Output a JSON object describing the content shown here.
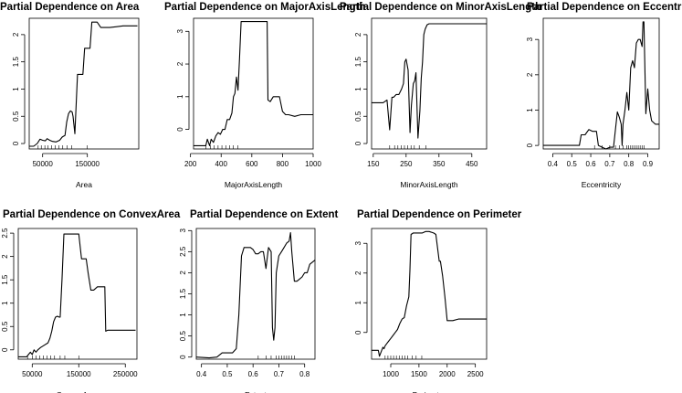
{
  "chart_data": [
    {
      "type": "line",
      "title": "Partial Dependence on Area",
      "xlabel": "Area",
      "ylabel": "",
      "xlim": [
        20000,
        265000
      ],
      "ylim": [
        -0.1,
        2.3
      ],
      "xticks": [
        50000,
        150000
      ],
      "yticks": [
        0.0,
        0.5,
        1.0,
        1.5,
        2.0
      ],
      "rug": [
        40000,
        47000,
        55000,
        62000,
        70000,
        78000,
        86000,
        95000,
        105000,
        115000,
        150000
      ],
      "series": [
        {
          "name": "partial dependence",
          "x": [
            20000,
            30000,
            38000,
            44000,
            50000,
            56000,
            60000,
            66000,
            72000,
            80000,
            88000,
            94000,
            100000,
            104000,
            108000,
            112000,
            116000,
            118000,
            122000,
            128000,
            132000,
            140000,
            144000,
            148000,
            152000,
            156000,
            160000,
            168000,
            172000,
            180000,
            200000,
            230000,
            262000
          ],
          "y": [
            -0.05,
            -0.05,
            0.0,
            0.08,
            0.06,
            0.05,
            0.09,
            0.06,
            0.04,
            0.03,
            0.06,
            0.12,
            0.15,
            0.4,
            0.55,
            0.6,
            0.58,
            0.5,
            0.18,
            1.27,
            1.27,
            1.27,
            1.75,
            1.75,
            1.75,
            1.75,
            2.23,
            2.23,
            2.23,
            2.13,
            2.13,
            2.16,
            2.16
          ]
        }
      ]
    },
    {
      "type": "line",
      "title": "Partial Dependence on MajorAxisLength",
      "xlabel": "MajorAxisLength",
      "ylabel": "",
      "xlim": [
        220,
        1000
      ],
      "ylim": [
        -0.6,
        3.4
      ],
      "xticks": [
        200,
        400,
        600,
        800,
        1000
      ],
      "yticks": [
        0,
        1,
        2,
        3
      ],
      "rug": [
        300,
        330,
        355,
        380,
        405,
        430,
        455,
        480,
        510
      ],
      "series": [
        {
          "name": "partial dependence",
          "x": [
            220,
            260,
            300,
            310,
            325,
            335,
            350,
            365,
            380,
            395,
            410,
            425,
            440,
            455,
            470,
            480,
            490,
            500,
            510,
            520,
            530,
            540,
            560,
            580,
            600,
            620,
            640,
            660,
            680,
            700,
            705,
            720,
            740,
            760,
            780,
            800,
            820,
            840,
            880,
            920,
            960,
            1000
          ],
          "y": [
            -0.5,
            -0.5,
            -0.5,
            -0.3,
            -0.5,
            -0.3,
            -0.4,
            -0.2,
            -0.1,
            -0.15,
            0.0,
            0.0,
            0.3,
            0.3,
            0.5,
            1.0,
            1.1,
            1.6,
            1.2,
            2.2,
            3.3,
            3.3,
            3.3,
            3.3,
            3.3,
            3.3,
            3.3,
            3.3,
            3.3,
            3.3,
            0.9,
            0.85,
            1.0,
            1.0,
            1.0,
            0.55,
            0.45,
            0.45,
            0.4,
            0.45,
            0.45,
            0.45
          ]
        }
      ]
    },
    {
      "type": "line",
      "title": "Partial Dependence on MinorAxisLength",
      "xlabel": "MinorAxisLength",
      "ylabel": "",
      "xlim": [
        145,
        495
      ],
      "ylim": [
        -0.1,
        2.3
      ],
      "xticks": [
        150,
        250,
        350,
        450
      ],
      "yticks": [
        0.0,
        0.5,
        1.0,
        1.5,
        2.0
      ],
      "rug": [
        200,
        215,
        225,
        235,
        245,
        255,
        265,
        275,
        290,
        310
      ],
      "series": [
        {
          "name": "partial dependence",
          "x": [
            145,
            165,
            180,
            192,
            200,
            207,
            212,
            220,
            228,
            236,
            242,
            246,
            250,
            256,
            262,
            266,
            272,
            276,
            280,
            286,
            292,
            296,
            300,
            304,
            308,
            314,
            320,
            330,
            345,
            360,
            400,
            440,
            495
          ],
          "y": [
            0.75,
            0.75,
            0.75,
            0.8,
            0.25,
            0.85,
            0.85,
            0.9,
            0.9,
            1.0,
            1.1,
            1.5,
            1.55,
            1.35,
            0.2,
            0.7,
            1.1,
            1.15,
            1.3,
            0.1,
            0.6,
            1.2,
            1.5,
            2.0,
            2.1,
            2.18,
            2.2,
            2.2,
            2.2,
            2.2,
            2.2,
            2.2,
            2.2
          ]
        }
      ]
    },
    {
      "type": "line",
      "title": "Partial Dependence on Eccentricity",
      "xlabel": "Eccentricity",
      "ylabel": "",
      "xlim": [
        0.35,
        0.96
      ],
      "ylim": [
        -0.1,
        3.6
      ],
      "xticks": [
        0.4,
        0.5,
        0.6,
        0.7,
        0.8,
        0.9
      ],
      "yticks": [
        0,
        1,
        2,
        3
      ],
      "rug": [
        0.62,
        0.66,
        0.7,
        0.73,
        0.75,
        0.77,
        0.79,
        0.8,
        0.81,
        0.82,
        0.83,
        0.84,
        0.85,
        0.86,
        0.87,
        0.88
      ],
      "series": [
        {
          "name": "partial dependence",
          "x": [
            0.35,
            0.45,
            0.54,
            0.55,
            0.57,
            0.59,
            0.61,
            0.63,
            0.64,
            0.66,
            0.68,
            0.7,
            0.72,
            0.74,
            0.75,
            0.76,
            0.765,
            0.77,
            0.78,
            0.79,
            0.8,
            0.81,
            0.82,
            0.83,
            0.84,
            0.85,
            0.86,
            0.87,
            0.875,
            0.88,
            0.89,
            0.9,
            0.91,
            0.92,
            0.94,
            0.96
          ],
          "y": [
            0.0,
            0.0,
            0.0,
            0.3,
            0.3,
            0.45,
            0.4,
            0.4,
            0.0,
            -0.05,
            -0.1,
            -0.05,
            -0.05,
            0.95,
            0.8,
            0.6,
            0.0,
            0.6,
            1.0,
            1.5,
            1.0,
            2.2,
            2.4,
            2.2,
            2.9,
            3.0,
            3.0,
            2.8,
            3.5,
            3.5,
            0.9,
            1.6,
            1.0,
            0.7,
            0.6,
            0.6
          ]
        }
      ]
    },
    {
      "type": "line",
      "title": "Partial Dependence on ConvexArea",
      "xlabel": "ConvexArea",
      "ylabel": "",
      "xlim": [
        20000,
        275000
      ],
      "ylim": [
        -0.2,
        2.6
      ],
      "xticks": [
        50000,
        150000,
        250000
      ],
      "yticks": [
        0.0,
        0.5,
        1.0,
        1.5,
        2.0,
        2.5
      ],
      "rug": [
        40000,
        50000,
        58000,
        66000,
        74000,
        82000,
        90000,
        98000,
        110000,
        120000,
        150000
      ],
      "series": [
        {
          "name": "partial dependence",
          "x": [
            20000,
            32000,
            38000,
            42000,
            46000,
            50000,
            54000,
            58000,
            62000,
            68000,
            76000,
            84000,
            88000,
            92000,
            96000,
            100000,
            104000,
            108000,
            110000,
            114000,
            118000,
            128000,
            140000,
            150000,
            156000,
            166000,
            170000,
            176000,
            182000,
            190000,
            200000,
            206000,
            208000,
            212000,
            220000,
            240000,
            272000
          ],
          "y": [
            -0.15,
            -0.15,
            -0.15,
            -0.1,
            -0.05,
            -0.1,
            0.0,
            -0.05,
            0.0,
            0.05,
            0.1,
            0.15,
            0.25,
            0.4,
            0.6,
            0.7,
            0.72,
            0.7,
            0.7,
            1.5,
            2.48,
            2.48,
            2.48,
            2.48,
            1.95,
            1.95,
            1.65,
            1.28,
            1.28,
            1.35,
            1.35,
            1.35,
            0.4,
            0.42,
            0.42,
            0.42,
            0.42
          ]
        }
      ]
    },
    {
      "type": "line",
      "title": "Partial Dependence on Extent",
      "xlabel": "Extent",
      "ylabel": "",
      "xlim": [
        0.38,
        0.84
      ],
      "ylim": [
        -0.05,
        3.05
      ],
      "xticks": [
        0.4,
        0.5,
        0.6,
        0.7,
        0.8
      ],
      "yticks": [
        0.0,
        0.5,
        1.0,
        1.5,
        2.0,
        2.5,
        3.0
      ],
      "rug": [
        0.62,
        0.65,
        0.67,
        0.69,
        0.7,
        0.71,
        0.72,
        0.73,
        0.74,
        0.75,
        0.76
      ],
      "series": [
        {
          "name": "partial dependence",
          "x": [
            0.38,
            0.43,
            0.46,
            0.48,
            0.52,
            0.535,
            0.545,
            0.555,
            0.565,
            0.575,
            0.59,
            0.6,
            0.61,
            0.62,
            0.63,
            0.64,
            0.65,
            0.66,
            0.67,
            0.675,
            0.68,
            0.685,
            0.69,
            0.7,
            0.71,
            0.72,
            0.73,
            0.74,
            0.745,
            0.75,
            0.76,
            0.77,
            0.78,
            0.79,
            0.8,
            0.81,
            0.82,
            0.84
          ],
          "y": [
            0.0,
            -0.02,
            0.0,
            0.1,
            0.1,
            0.2,
            1.0,
            2.4,
            2.6,
            2.6,
            2.6,
            2.55,
            2.45,
            2.45,
            2.5,
            2.5,
            2.1,
            2.6,
            2.5,
            0.7,
            0.4,
            0.7,
            2.0,
            2.4,
            2.5,
            2.6,
            2.7,
            2.75,
            2.95,
            2.5,
            1.8,
            1.8,
            1.85,
            1.9,
            2.0,
            2.0,
            2.2,
            2.3
          ]
        }
      ]
    },
    {
      "type": "line",
      "title": "Partial Dependence on Perimeter",
      "xlabel": "Perimeter",
      "ylabel": "",
      "xlim": [
        660,
        2700
      ],
      "ylim": [
        -0.9,
        3.5
      ],
      "xticks": [
        1000,
        1500,
        2000,
        2500
      ],
      "yticks": [
        0,
        1,
        2,
        3
      ],
      "rug": [
        900,
        950,
        1000,
        1050,
        1100,
        1150,
        1200,
        1250,
        1300,
        1380,
        1450,
        1550
      ],
      "series": [
        {
          "name": "partial dependence",
          "x": [
            660,
            780,
            800,
            840,
            860,
            880,
            900,
            940,
            960,
            1000,
            1040,
            1080,
            1120,
            1160,
            1200,
            1240,
            1280,
            1320,
            1340,
            1360,
            1400,
            1440,
            1500,
            1560,
            1620,
            1680,
            1760,
            1800,
            1860,
            1880,
            1920,
            1960,
            2000,
            2040,
            2100,
            2200,
            2400,
            2700
          ],
          "y": [
            -0.6,
            -0.6,
            -0.8,
            -0.6,
            -0.5,
            -0.55,
            -0.45,
            -0.35,
            -0.3,
            -0.2,
            -0.1,
            0.0,
            0.1,
            0.3,
            0.45,
            0.5,
            0.9,
            1.2,
            2.1,
            3.3,
            3.35,
            3.35,
            3.35,
            3.35,
            3.4,
            3.4,
            3.35,
            3.3,
            2.4,
            2.4,
            1.9,
            1.2,
            0.4,
            0.4,
            0.4,
            0.45,
            0.45,
            0.45
          ]
        }
      ]
    }
  ]
}
